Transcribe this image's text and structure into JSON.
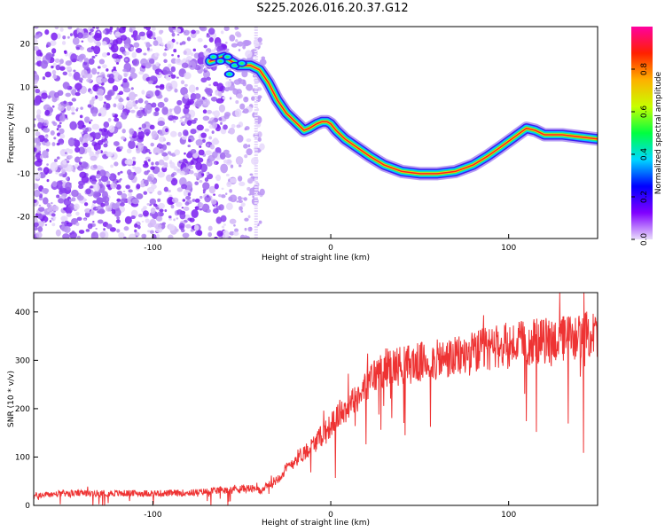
{
  "title": "S225.2026.016.20.37.G12",
  "chart_data": [
    {
      "type": "heatmap",
      "title": "S225.2026.016.20.37.G12",
      "xlabel": "Height of straight line (km)",
      "ylabel": "Frequency (Hz)",
      "xlim": [
        -167,
        150
      ],
      "ylim": [
        -25,
        24
      ],
      "x_ticks": [
        -100,
        0,
        100
      ],
      "y_ticks": [
        20,
        10,
        0,
        -10,
        -20
      ],
      "colorbar": {
        "label": "Normalized spectral amplitude",
        "range": [
          0,
          1
        ],
        "ticks": [
          0.0,
          0.2,
          0.4,
          0.6,
          0.8
        ],
        "colors": [
          "#e9dcfb",
          "#8000ff",
          "#0000ff",
          "#00d8ff",
          "#00ff40",
          "#c8ff00",
          "#ffb000",
          "#ff2000",
          "#ff00a0"
        ]
      },
      "ridge": {
        "x": [
          -68,
          -60,
          -52,
          -45,
          -40,
          -35,
          -30,
          -25,
          -20,
          -15,
          -12,
          -8,
          -5,
          -2,
          0,
          3,
          8,
          15,
          22,
          30,
          40,
          50,
          60,
          70,
          80,
          88,
          95,
          100,
          105,
          110,
          115,
          120,
          130,
          140,
          150
        ],
        "y": [
          16,
          17,
          15,
          15,
          14,
          11,
          7,
          4,
          2,
          0,
          0.5,
          1.5,
          2,
          2,
          1.5,
          0,
          -2,
          -4,
          -6,
          -8,
          -9.5,
          -10,
          -10,
          -9.5,
          -8,
          -6,
          -4,
          -2.5,
          -1,
          0.5,
          0,
          -1,
          -1,
          -1.5,
          -2
        ]
      }
    },
    {
      "type": "line",
      "xlabel": "Height of straight line (km)",
      "ylabel": "SNR (10 * v/v)",
      "xlim": [
        -167,
        150
      ],
      "ylim": [
        0,
        440
      ],
      "x_ticks": [
        -100,
        0,
        100
      ],
      "y_ticks": [
        0,
        100,
        200,
        300,
        400
      ],
      "color": "#ee3333",
      "series": [
        {
          "name": "SNR",
          "x": [
            -167,
            -150,
            -130,
            -110,
            -90,
            -75,
            -65,
            -55,
            -45,
            -40,
            -35,
            -30,
            -25,
            -20,
            -15,
            -10,
            -5,
            0,
            5,
            10,
            15,
            20,
            25,
            30,
            40,
            50,
            60,
            70,
            80,
            90,
            100,
            110,
            120,
            130,
            140,
            150
          ],
          "values": [
            20,
            25,
            25,
            25,
            25,
            27,
            30,
            35,
            35,
            30,
            40,
            55,
            75,
            95,
            110,
            125,
            145,
            165,
            190,
            205,
            225,
            250,
            270,
            285,
            290,
            295,
            300,
            305,
            315,
            325,
            330,
            335,
            340,
            345,
            350,
            355
          ]
        }
      ]
    }
  ]
}
